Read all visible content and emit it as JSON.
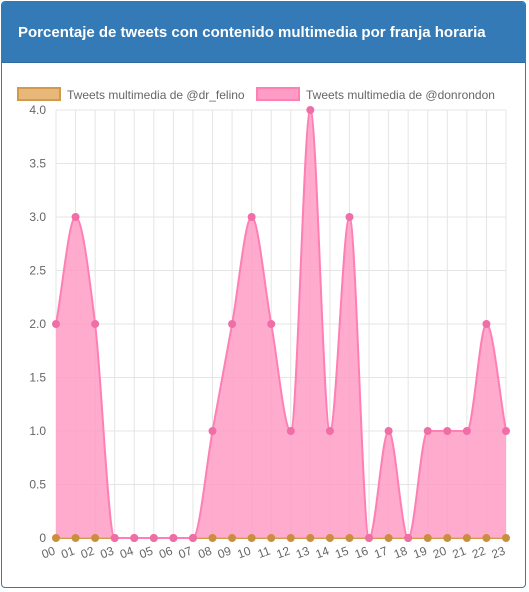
{
  "panel": {
    "title": "Porcentaje de tweets con contenido multimedia por franja horaria"
  },
  "colors": {
    "header_bg": "#337ab7",
    "series_felino_fill": "#e8b87a",
    "series_felino_stroke": "#d49a4a",
    "series_felino_point": "#c98f3e",
    "series_donrondon_fill": "#ff9cc6",
    "series_donrondon_stroke": "#ff7fb5",
    "series_donrondon_point": "#f06ea8",
    "grid": "#e5e5e5",
    "axis_text": "#666666"
  },
  "chart_data": {
    "type": "area",
    "title": "Porcentaje de tweets con contenido multimedia por franja horaria",
    "xlabel": "",
    "ylabel": "",
    "categories": [
      "00",
      "01",
      "02",
      "03",
      "04",
      "05",
      "06",
      "07",
      "08",
      "09",
      "10",
      "11",
      "12",
      "13",
      "14",
      "15",
      "16",
      "17",
      "18",
      "19",
      "20",
      "21",
      "22",
      "23"
    ],
    "series": [
      {
        "name": "Tweets multimedia de @dr_felino",
        "values": [
          0,
          0,
          0,
          0,
          0,
          0,
          0,
          0,
          0,
          0,
          0,
          0,
          0,
          0,
          0,
          0,
          0,
          0,
          0,
          0,
          0,
          0,
          0,
          0
        ]
      },
      {
        "name": "Tweets multimedia de @donrondon",
        "values": [
          2,
          3,
          2,
          0,
          0,
          0,
          0,
          0,
          1,
          2,
          3,
          2,
          1,
          4,
          1,
          3,
          0,
          1,
          0,
          1,
          1,
          1,
          2,
          1
        ]
      }
    ],
    "ylim": [
      0,
      4.0
    ],
    "yticks": [
      "0",
      "0.5",
      "1.0",
      "1.5",
      "2.0",
      "2.5",
      "3.0",
      "3.5",
      "4.0"
    ],
    "grid": true,
    "legend_position": "top"
  }
}
